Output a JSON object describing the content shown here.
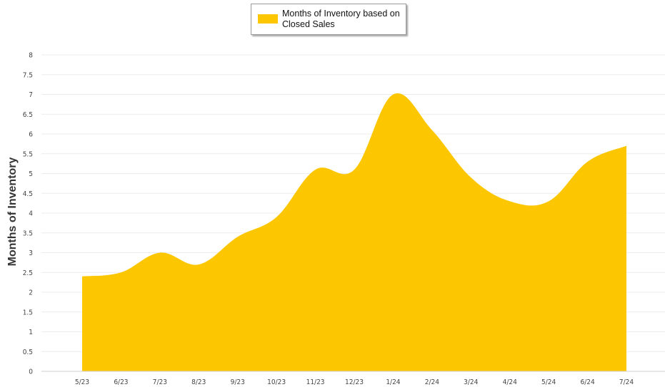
{
  "chart_data": {
    "type": "area",
    "ylabel": "Months of Inventory",
    "ylim": [
      0,
      8
    ],
    "yticks": [
      "0",
      "0.5",
      "1",
      "1.5",
      "2",
      "2.5",
      "3",
      "3.5",
      "4",
      "4.5",
      "5",
      "5.5",
      "6",
      "6.5",
      "7",
      "7.5",
      "8"
    ],
    "categories": [
      "5/23",
      "6/23",
      "7/23",
      "8/23",
      "9/23",
      "10/23",
      "11/23",
      "12/23",
      "1/24",
      "2/24",
      "3/24",
      "4/24",
      "5/24",
      "6/24",
      "7/24"
    ],
    "series": [
      {
        "name": "Months of Inventory based on Closed Sales",
        "color": "#FCC600",
        "values": [
          2.4,
          2.5,
          3.0,
          2.7,
          3.4,
          3.9,
          5.1,
          5.1,
          7.0,
          6.1,
          4.9,
          4.3,
          4.3,
          5.3,
          5.7
        ]
      }
    ],
    "grid": true,
    "legend_position": "top-center"
  }
}
